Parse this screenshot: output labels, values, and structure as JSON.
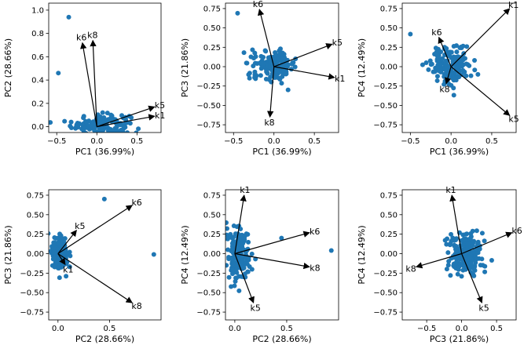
{
  "colors": {
    "point": "#1f77b4",
    "arrow": "#000000",
    "frame": "#000000"
  },
  "chart_data": [
    {
      "type": "scatter",
      "title": "",
      "xlabel": "PC1 (36.99%)",
      "ylabel": "PC2 (28.66%)",
      "xlim": [
        -0.6,
        0.8
      ],
      "ylim": [
        -0.05,
        1.06
      ],
      "xticks": [
        -0.5,
        0.0,
        0.5
      ],
      "yticks": [
        0.0,
        0.2,
        0.4,
        0.6,
        0.8,
        1.0
      ],
      "xtick_labels": [
        "−0.5",
        "0.0",
        "0.5"
      ],
      "ytick_labels": [
        "0.0",
        "0.2",
        "0.4",
        "0.6",
        "0.8",
        "1.0"
      ],
      "cluster": {
        "cx": 0.05,
        "cy": 0.02,
        "sx": 0.18,
        "sy": 0.045,
        "n": 160
      },
      "outliers": [
        [
          -0.35,
          0.94
        ],
        [
          -0.48,
          0.46
        ]
      ],
      "vectors": [
        {
          "label": "k6",
          "x": -0.18,
          "y": 0.72
        },
        {
          "label": "k8",
          "x": -0.05,
          "y": 0.74
        },
        {
          "label": "k5",
          "x": 0.72,
          "y": 0.17
        },
        {
          "label": "k1",
          "x": 0.72,
          "y": 0.09
        }
      ]
    },
    {
      "type": "scatter",
      "title": "",
      "xlabel": "PC1 (36.99%)",
      "ylabel": "PC3 (21.86%)",
      "xlim": [
        -0.6,
        0.8
      ],
      "ylim": [
        -0.85,
        0.82
      ],
      "xticks": [
        -0.5,
        0.0,
        0.5
      ],
      "yticks": [
        -0.75,
        -0.5,
        -0.25,
        0.0,
        0.25,
        0.5,
        0.75
      ],
      "xtick_labels": [
        "−0.5",
        "0.0",
        "0.5"
      ],
      "ytick_labels": [
        "−0.75",
        "−0.50",
        "−0.25",
        "0.00",
        "0.25",
        "0.50",
        "0.75"
      ],
      "cluster": {
        "cx": 0.0,
        "cy": 0.02,
        "sx": 0.14,
        "sy": 0.09,
        "n": 170
      },
      "outliers": [
        [
          -0.45,
          0.69
        ]
      ],
      "vectors": [
        {
          "label": "k6",
          "x": -0.18,
          "y": 0.74
        },
        {
          "label": "k5",
          "x": 0.72,
          "y": 0.29
        },
        {
          "label": "k1",
          "x": 0.75,
          "y": -0.14
        },
        {
          "label": "k8",
          "x": -0.05,
          "y": -0.65
        }
      ]
    },
    {
      "type": "scatter",
      "title": "",
      "xlabel": "PC1 (36.99%)",
      "ylabel": "PC4 (12.49%)",
      "xlim": [
        -0.6,
        0.8
      ],
      "ylim": [
        -0.85,
        0.82
      ],
      "xticks": [
        -0.5,
        0.0,
        0.5
      ],
      "yticks": [
        -0.75,
        -0.5,
        -0.25,
        0.0,
        0.25,
        0.5,
        0.75
      ],
      "xtick_labels": [
        "−0.5",
        "0.0",
        "0.5"
      ],
      "ytick_labels": [
        "−0.75",
        "−0.50",
        "−0.25",
        "0.00",
        "0.25",
        "0.50",
        "0.75"
      ],
      "cluster": {
        "cx": 0.0,
        "cy": 0.02,
        "sx": 0.13,
        "sy": 0.12,
        "n": 170
      },
      "outliers": [
        [
          -0.5,
          0.42
        ]
      ],
      "vectors": [
        {
          "label": "k1",
          "x": 0.72,
          "y": 0.75
        },
        {
          "label": "k6",
          "x": -0.15,
          "y": 0.38
        },
        {
          "label": "k8",
          "x": -0.06,
          "y": -0.22
        },
        {
          "label": "k5",
          "x": 0.72,
          "y": -0.63
        }
      ]
    },
    {
      "type": "scatter",
      "title": "",
      "xlabel": "PC2 (28.66%)",
      "ylabel": "PC3 (21.86%)",
      "xlim": [
        -0.09,
        1.0
      ],
      "ylim": [
        -0.85,
        0.82
      ],
      "xticks": [
        0.0,
        0.5
      ],
      "yticks": [
        -0.75,
        -0.5,
        -0.25,
        0.0,
        0.25,
        0.5,
        0.75
      ],
      "xtick_labels": [
        "0.0",
        "0.5"
      ],
      "ytick_labels": [
        "−0.75",
        "−0.50",
        "−0.25",
        "0.00",
        "0.25",
        "0.50",
        "0.75"
      ],
      "cluster": {
        "cx": 0.02,
        "cy": 0.0,
        "sx": 0.04,
        "sy": 0.12,
        "n": 150
      },
      "outliers": [
        [
          0.45,
          0.7
        ],
        [
          0.93,
          -0.01
        ]
      ],
      "vectors": [
        {
          "label": "k6",
          "x": 0.72,
          "y": 0.62
        },
        {
          "label": "k5",
          "x": 0.18,
          "y": 0.3
        },
        {
          "label": "k1",
          "x": 0.07,
          "y": -0.14
        },
        {
          "label": "k8",
          "x": 0.72,
          "y": -0.63
        }
      ]
    },
    {
      "type": "scatter",
      "title": "",
      "xlabel": "PC2 (28.66%)",
      "ylabel": "PC4 (12.49%)",
      "xlim": [
        -0.09,
        1.0
      ],
      "ylim": [
        -0.85,
        0.82
      ],
      "xticks": [
        0.0,
        0.5
      ],
      "yticks": [
        -0.75,
        -0.5,
        -0.25,
        0.0,
        0.25,
        0.5,
        0.75
      ],
      "xtick_labels": [
        "0.0",
        "0.5"
      ],
      "ytick_labels": [
        "−0.75",
        "−0.50",
        "−0.25",
        "0.00",
        "0.25",
        "0.50",
        "0.75"
      ],
      "cluster": {
        "cx": 0.03,
        "cy": 0.0,
        "sx": 0.05,
        "sy": 0.17,
        "n": 170
      },
      "outliers": [
        [
          0.45,
          0.2
        ],
        [
          0.93,
          0.04
        ]
      ],
      "vectors": [
        {
          "label": "k1",
          "x": 0.09,
          "y": 0.75
        },
        {
          "label": "k6",
          "x": 0.72,
          "y": 0.27
        },
        {
          "label": "k8",
          "x": 0.72,
          "y": -0.17
        },
        {
          "label": "k5",
          "x": 0.18,
          "y": -0.63
        }
      ]
    },
    {
      "type": "scatter",
      "title": "",
      "xlabel": "PC3 (21.86%)",
      "ylabel": "PC4 (12.49%)",
      "xlim": [
        -0.85,
        0.78
      ],
      "ylim": [
        -0.85,
        0.82
      ],
      "xticks": [
        -0.5,
        0.0,
        0.5
      ],
      "yticks": [
        -0.75,
        -0.5,
        -0.25,
        0.0,
        0.25,
        0.5,
        0.75
      ],
      "xtick_labels": [
        "−0.5",
        "0.0",
        "0.5"
      ],
      "ytick_labels": [
        "−0.75",
        "−0.50",
        "−0.25",
        "0.00",
        "0.25",
        "0.50",
        "0.75"
      ],
      "cluster": {
        "cx": 0.05,
        "cy": 0.0,
        "sx": 0.12,
        "sy": 0.15,
        "n": 190
      },
      "outliers": [],
      "vectors": [
        {
          "label": "k1",
          "x": -0.14,
          "y": 0.75
        },
        {
          "label": "k6",
          "x": 0.72,
          "y": 0.27
        },
        {
          "label": "k8",
          "x": -0.65,
          "y": -0.17
        },
        {
          "label": "k5",
          "x": 0.29,
          "y": -0.63
        }
      ]
    }
  ]
}
